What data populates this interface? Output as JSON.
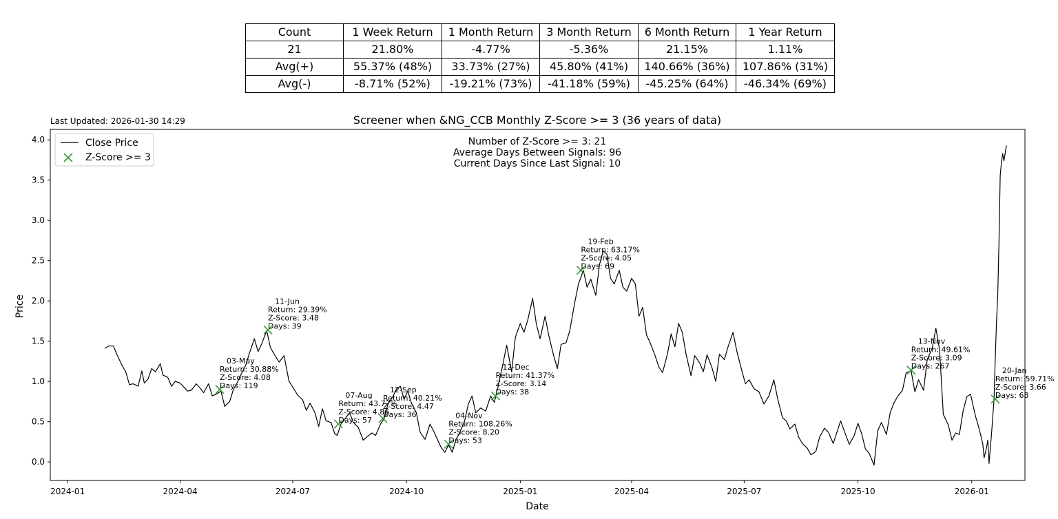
{
  "table": {
    "header": [
      "Count",
      "1 Week Return",
      "1 Month Return",
      "3 Month Return",
      "6 Month Return",
      "1 Year Return"
    ],
    "rows": [
      [
        "21",
        "21.80%",
        "-4.77%",
        "-5.36%",
        "21.15%",
        "1.11%"
      ],
      [
        "Avg(+)",
        "55.37% (48%)",
        "33.73% (27%)",
        "45.80% (41%)",
        "140.66% (36%)",
        "107.86% (31%)"
      ],
      [
        "Avg(-)",
        "-8.71% (52%)",
        "-19.21% (73%)",
        "-41.18% (59%)",
        "-45.25% (64%)",
        "-46.34% (69%)"
      ]
    ]
  },
  "last_updated": "Last Updated: 2026-01-30 14:29",
  "chart_data": {
    "type": "line",
    "title": "Screener when &NG_CCB Monthly Z-Score >= 3 (36 years of data)",
    "xlabel": "Date",
    "ylabel": "Price",
    "xlim": [
      "2023-12-18",
      "2026-02-13"
    ],
    "ylim": [
      -0.23,
      4.13
    ],
    "x_ticks": [
      "2024-01",
      "2024-04",
      "2024-07",
      "2024-10",
      "2025-01",
      "2025-04",
      "2025-07",
      "2025-10",
      "2026-01"
    ],
    "y_ticks": [
      "0.0",
      "0.5",
      "1.0",
      "1.5",
      "2.0",
      "2.5",
      "3.0",
      "3.5",
      "4.0"
    ],
    "grid": false,
    "legend": {
      "placement": "top-left",
      "entries": [
        "Close Price",
        "Z-Score >= 3"
      ]
    },
    "annotation": {
      "lines": [
        "Number of Z-Score >= 3: 21",
        "Average Days Between Signals: 96",
        "Current Days Since Last Signal: 10"
      ]
    },
    "colors": {
      "line": "#000000",
      "marker": "#3a9a3a"
    },
    "series": [
      {
        "name": "Close Price",
        "points": [
          [
            "2024-01-31",
            1.41
          ],
          [
            "2024-02-03",
            1.44
          ],
          [
            "2024-02-07",
            1.44
          ],
          [
            "2024-02-10",
            1.33
          ],
          [
            "2024-02-14",
            1.2
          ],
          [
            "2024-02-17",
            1.12
          ],
          [
            "2024-02-20",
            0.96
          ],
          [
            "2024-02-23",
            0.97
          ],
          [
            "2024-02-27",
            0.94
          ],
          [
            "2024-03-01",
            1.13
          ],
          [
            "2024-03-03",
            0.98
          ],
          [
            "2024-03-06",
            1.03
          ],
          [
            "2024-03-09",
            1.16
          ],
          [
            "2024-03-12",
            1.12
          ],
          [
            "2024-03-16",
            1.22
          ],
          [
            "2024-03-18",
            1.08
          ],
          [
            "2024-03-22",
            1.05
          ],
          [
            "2024-03-25",
            0.94
          ],
          [
            "2024-03-28",
            1.0
          ],
          [
            "2024-04-01",
            0.98
          ],
          [
            "2024-04-04",
            0.93
          ],
          [
            "2024-04-07",
            0.88
          ],
          [
            "2024-04-10",
            0.89
          ],
          [
            "2024-04-14",
            0.97
          ],
          [
            "2024-04-17",
            0.92
          ],
          [
            "2024-04-20",
            0.86
          ],
          [
            "2024-04-24",
            0.97
          ],
          [
            "2024-04-27",
            0.82
          ],
          [
            "2024-05-01",
            0.85
          ],
          [
            "2024-05-04",
            0.88
          ],
          [
            "2024-05-07",
            0.69
          ],
          [
            "2024-05-11",
            0.75
          ],
          [
            "2024-05-14",
            0.9
          ],
          [
            "2024-05-17",
            0.98
          ],
          [
            "2024-05-21",
            1.11
          ],
          [
            "2024-05-24",
            1.2
          ],
          [
            "2024-05-27",
            1.35
          ],
          [
            "2024-05-31",
            1.53
          ],
          [
            "2024-06-03",
            1.37
          ],
          [
            "2024-06-06",
            1.47
          ],
          [
            "2024-06-10",
            1.63
          ],
          [
            "2024-06-13",
            1.42
          ],
          [
            "2024-06-16",
            1.34
          ],
          [
            "2024-06-20",
            1.24
          ],
          [
            "2024-06-24",
            1.32
          ],
          [
            "2024-06-28",
            1.0
          ],
          [
            "2024-07-01",
            0.93
          ],
          [
            "2024-07-05",
            0.83
          ],
          [
            "2024-07-09",
            0.77
          ],
          [
            "2024-07-12",
            0.64
          ],
          [
            "2024-07-15",
            0.73
          ],
          [
            "2024-07-19",
            0.61
          ],
          [
            "2024-07-22",
            0.44
          ],
          [
            "2024-07-25",
            0.66
          ],
          [
            "2024-07-28",
            0.51
          ],
          [
            "2024-08-01",
            0.49
          ],
          [
            "2024-08-04",
            0.35
          ],
          [
            "2024-08-06",
            0.33
          ],
          [
            "2024-08-09",
            0.47
          ],
          [
            "2024-08-13",
            0.55
          ],
          [
            "2024-08-16",
            0.61
          ],
          [
            "2024-08-19",
            0.49
          ],
          [
            "2024-08-23",
            0.43
          ],
          [
            "2024-08-27",
            0.27
          ],
          [
            "2024-08-30",
            0.31
          ],
          [
            "2024-09-03",
            0.36
          ],
          [
            "2024-09-06",
            0.33
          ],
          [
            "2024-09-10",
            0.47
          ],
          [
            "2024-09-13",
            0.54
          ],
          [
            "2024-09-16",
            0.72
          ],
          [
            "2024-09-20",
            0.81
          ],
          [
            "2024-09-23",
            0.91
          ],
          [
            "2024-09-26",
            0.94
          ],
          [
            "2024-09-29",
            0.78
          ],
          [
            "2024-10-02",
            0.88
          ],
          [
            "2024-10-05",
            0.73
          ],
          [
            "2024-10-09",
            0.61
          ],
          [
            "2024-10-12",
            0.37
          ],
          [
            "2024-10-16",
            0.28
          ],
          [
            "2024-10-20",
            0.47
          ],
          [
            "2024-10-23",
            0.38
          ],
          [
            "2024-10-26",
            0.28
          ],
          [
            "2024-10-29",
            0.18
          ],
          [
            "2024-11-01",
            0.12
          ],
          [
            "2024-11-04",
            0.21
          ],
          [
            "2024-11-07",
            0.12
          ],
          [
            "2024-11-10",
            0.28
          ],
          [
            "2024-11-13",
            0.36
          ],
          [
            "2024-11-17",
            0.51
          ],
          [
            "2024-11-20",
            0.72
          ],
          [
            "2024-11-23",
            0.82
          ],
          [
            "2024-11-26",
            0.61
          ],
          [
            "2024-11-30",
            0.67
          ],
          [
            "2024-12-04",
            0.63
          ],
          [
            "2024-12-08",
            0.82
          ],
          [
            "2024-12-11",
            0.74
          ],
          [
            "2024-12-14",
            0.93
          ],
          [
            "2024-12-18",
            1.22
          ],
          [
            "2024-12-21",
            1.45
          ],
          [
            "2024-12-25",
            1.12
          ],
          [
            "2024-12-28",
            1.55
          ],
          [
            "2025-01-01",
            1.72
          ],
          [
            "2025-01-04",
            1.61
          ],
          [
            "2025-01-07",
            1.76
          ],
          [
            "2025-01-11",
            2.03
          ],
          [
            "2025-01-14",
            1.71
          ],
          [
            "2025-01-17",
            1.53
          ],
          [
            "2025-01-21",
            1.81
          ],
          [
            "2025-01-24",
            1.57
          ],
          [
            "2025-01-28",
            1.32
          ],
          [
            "2025-01-31",
            1.16
          ],
          [
            "2025-02-03",
            1.46
          ],
          [
            "2025-02-07",
            1.48
          ],
          [
            "2025-02-10",
            1.63
          ],
          [
            "2025-02-14",
            1.98
          ],
          [
            "2025-02-17",
            2.21
          ],
          [
            "2025-02-21",
            2.38
          ],
          [
            "2025-02-24",
            2.17
          ],
          [
            "2025-02-27",
            2.27
          ],
          [
            "2025-03-03",
            2.07
          ],
          [
            "2025-03-06",
            2.45
          ],
          [
            "2025-03-09",
            2.62
          ],
          [
            "2025-03-12",
            2.58
          ],
          [
            "2025-03-15",
            2.28
          ],
          [
            "2025-03-18",
            2.21
          ],
          [
            "2025-03-22",
            2.38
          ],
          [
            "2025-03-25",
            2.17
          ],
          [
            "2025-03-28",
            2.12
          ],
          [
            "2025-04-01",
            2.28
          ],
          [
            "2025-04-04",
            2.21
          ],
          [
            "2025-04-07",
            1.81
          ],
          [
            "2025-04-10",
            1.92
          ],
          [
            "2025-04-13",
            1.58
          ],
          [
            "2025-04-16",
            1.48
          ],
          [
            "2025-04-20",
            1.32
          ],
          [
            "2025-04-23",
            1.18
          ],
          [
            "2025-04-26",
            1.11
          ],
          [
            "2025-04-30",
            1.34
          ],
          [
            "2025-05-03",
            1.59
          ],
          [
            "2025-05-06",
            1.43
          ],
          [
            "2025-05-09",
            1.72
          ],
          [
            "2025-05-12",
            1.61
          ],
          [
            "2025-05-15",
            1.34
          ],
          [
            "2025-05-19",
            1.07
          ],
          [
            "2025-05-22",
            1.32
          ],
          [
            "2025-05-26",
            1.23
          ],
          [
            "2025-05-29",
            1.12
          ],
          [
            "2025-06-01",
            1.33
          ],
          [
            "2025-06-05",
            1.17
          ],
          [
            "2025-06-08",
            1.0
          ],
          [
            "2025-06-11",
            1.34
          ],
          [
            "2025-06-15",
            1.27
          ],
          [
            "2025-06-18",
            1.43
          ],
          [
            "2025-06-22",
            1.61
          ],
          [
            "2025-06-25",
            1.38
          ],
          [
            "2025-06-29",
            1.14
          ],
          [
            "2025-07-02",
            0.97
          ],
          [
            "2025-07-05",
            1.02
          ],
          [
            "2025-07-09",
            0.91
          ],
          [
            "2025-07-13",
            0.87
          ],
          [
            "2025-07-17",
            0.72
          ],
          [
            "2025-07-21",
            0.82
          ],
          [
            "2025-07-25",
            1.02
          ],
          [
            "2025-07-28",
            0.79
          ],
          [
            "2025-08-01",
            0.55
          ],
          [
            "2025-08-04",
            0.51
          ],
          [
            "2025-08-07",
            0.41
          ],
          [
            "2025-08-11",
            0.47
          ],
          [
            "2025-08-14",
            0.31
          ],
          [
            "2025-08-17",
            0.23
          ],
          [
            "2025-08-21",
            0.17
          ],
          [
            "2025-08-24",
            0.09
          ],
          [
            "2025-08-28",
            0.13
          ],
          [
            "2025-08-31",
            0.31
          ],
          [
            "2025-09-04",
            0.42
          ],
          [
            "2025-09-07",
            0.37
          ],
          [
            "2025-09-11",
            0.23
          ],
          [
            "2025-09-14",
            0.37
          ],
          [
            "2025-09-17",
            0.51
          ],
          [
            "2025-09-21",
            0.34
          ],
          [
            "2025-09-24",
            0.22
          ],
          [
            "2025-09-28",
            0.33
          ],
          [
            "2025-10-01",
            0.48
          ],
          [
            "2025-10-04",
            0.35
          ],
          [
            "2025-10-07",
            0.16
          ],
          [
            "2025-10-10",
            0.11
          ],
          [
            "2025-10-14",
            -0.04
          ],
          [
            "2025-10-17",
            0.39
          ],
          [
            "2025-10-20",
            0.49
          ],
          [
            "2025-10-24",
            0.34
          ],
          [
            "2025-10-27",
            0.61
          ],
          [
            "2025-10-30",
            0.73
          ],
          [
            "2025-11-02",
            0.81
          ],
          [
            "2025-11-06",
            0.89
          ],
          [
            "2025-11-09",
            1.11
          ],
          [
            "2025-11-13",
            1.13
          ],
          [
            "2025-11-16",
            0.87
          ],
          [
            "2025-11-19",
            1.02
          ],
          [
            "2025-11-23",
            0.89
          ],
          [
            "2025-11-26",
            1.27
          ],
          [
            "2025-11-30",
            1.41
          ],
          [
            "2025-12-03",
            1.66
          ],
          [
            "2025-12-06",
            1.39
          ],
          [
            "2025-12-09",
            0.59
          ],
          [
            "2025-12-13",
            0.46
          ],
          [
            "2025-12-16",
            0.27
          ],
          [
            "2025-12-19",
            0.36
          ],
          [
            "2025-12-22",
            0.34
          ],
          [
            "2025-12-25",
            0.63
          ],
          [
            "2025-12-28",
            0.81
          ],
          [
            "2025-12-31",
            0.84
          ],
          [
            "2026-01-04",
            0.57
          ],
          [
            "2026-01-07",
            0.41
          ],
          [
            "2026-01-10",
            0.22
          ],
          [
            "2026-01-11",
            0.05
          ],
          [
            "2026-01-13",
            0.18
          ],
          [
            "2026-01-14",
            0.27
          ],
          [
            "2026-01-15",
            -0.02
          ],
          [
            "2026-01-17",
            0.35
          ],
          [
            "2026-01-19",
            0.77
          ],
          [
            "2026-01-20",
            1.28
          ],
          [
            "2026-01-21",
            1.74
          ],
          [
            "2026-01-22",
            2.07
          ],
          [
            "2026-01-23",
            2.72
          ],
          [
            "2026-01-24",
            3.56
          ],
          [
            "2026-01-25",
            3.72
          ],
          [
            "2026-01-26",
            3.83
          ],
          [
            "2026-01-27",
            3.74
          ],
          [
            "2026-01-29",
            3.93
          ]
        ]
      }
    ],
    "signals": [
      {
        "date": "2024-05-03",
        "price": 0.9,
        "label": "03-May",
        "return": "Return: 30.88%",
        "zscore": "Z-Score: 4.08",
        "days": "Days: 119"
      },
      {
        "date": "2024-06-11",
        "price": 1.64,
        "label": "11-Jun",
        "return": "Return: 29.39%",
        "zscore": "Z-Score: 3.48",
        "days": "Days: 39"
      },
      {
        "date": "2024-08-07",
        "price": 0.47,
        "label": "07-Aug",
        "return": "Return: 43.77%",
        "zscore": "Z-Score: 4.86",
        "days": "Days: 57"
      },
      {
        "date": "2024-09-12",
        "price": 0.54,
        "label": "12-Sep",
        "return": "Return: 40.21%",
        "zscore": "Z-Score: 4.47",
        "days": "Days: 36"
      },
      {
        "date": "2024-11-04",
        "price": 0.22,
        "label": "04-Nov",
        "return": "Return: 108.26%",
        "zscore": "Z-Score: 8.20",
        "days": "Days: 53"
      },
      {
        "date": "2024-12-12",
        "price": 0.82,
        "label": "12-Dec",
        "return": "Return: 41.37%",
        "zscore": "Z-Score: 3.14",
        "days": "Days: 38"
      },
      {
        "date": "2025-02-19",
        "price": 2.38,
        "label": "19-Feb",
        "return": "Return: 63.17%",
        "zscore": "Z-Score: 4.05",
        "days": "Days: 69"
      },
      {
        "date": "2025-11-13",
        "price": 1.14,
        "label": "13-Nov",
        "return": "Return: 49.61%",
        "zscore": "Z-Score: 3.09",
        "days": "Days: 267"
      },
      {
        "date": "2026-01-20",
        "price": 0.78,
        "label": "20-Jan",
        "return": "Return: 59.71%",
        "zscore": "Z-Score: 3.66",
        "days": "Days: 68"
      }
    ]
  }
}
